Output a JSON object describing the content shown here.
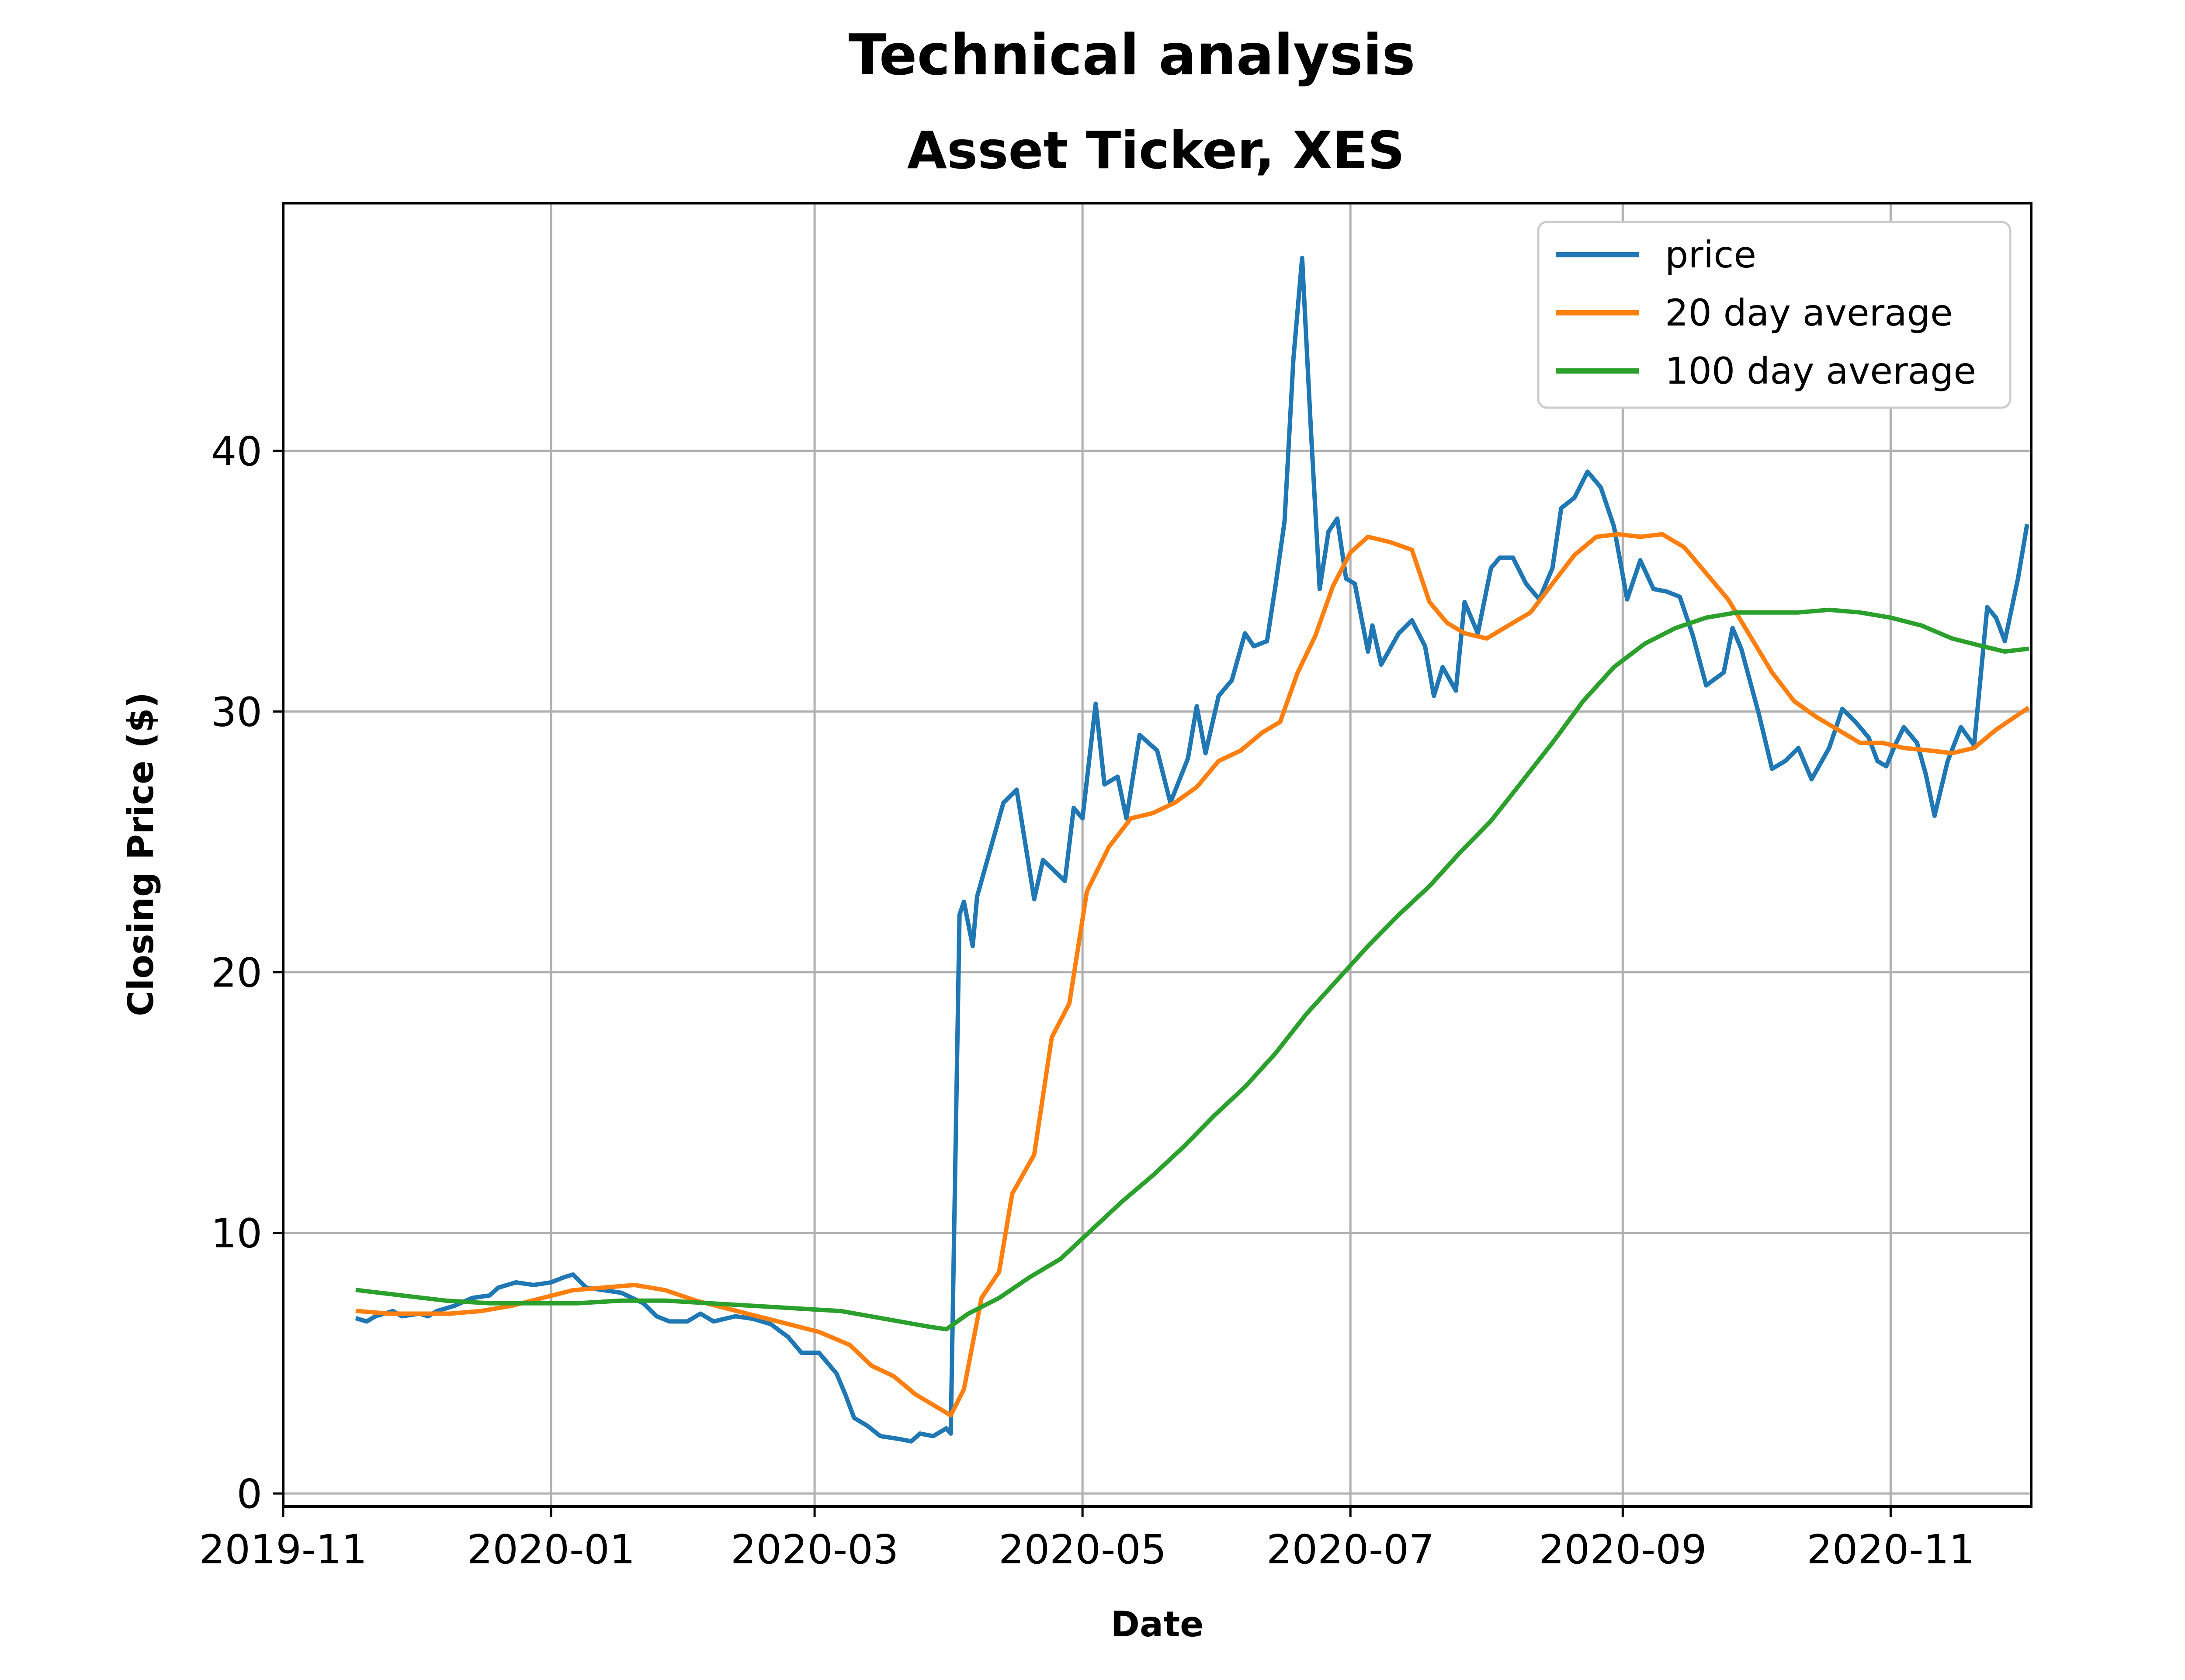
{
  "chart_data": {
    "type": "line",
    "title": "Technical analysis",
    "subtitle": "Asset Ticker, XES",
    "xlabel": "Date",
    "ylabel": "Closing Price ($)",
    "x_ticks": [
      "2019-11",
      "2020-01",
      "2020-03",
      "2020-05",
      "2020-07",
      "2020-09",
      "2020-11"
    ],
    "y_ticks": [
      0,
      10,
      20,
      30,
      40
    ],
    "xlim": [
      "2019-11-01",
      "2020-12-03"
    ],
    "ylim": [
      -0.5,
      49.5
    ],
    "grid": true,
    "legend_position": "top-right",
    "colors": {
      "price": "#1f77b4",
      "avg20": "#ff7f0e",
      "avg100": "#2ca02c"
    },
    "series": [
      {
        "name": "price",
        "color": "#1f77b4",
        "points": [
          [
            "2019-11-18",
            6.7
          ],
          [
            "2019-11-20",
            6.6
          ],
          [
            "2019-11-22",
            6.8
          ],
          [
            "2019-11-26",
            7.0
          ],
          [
            "2019-11-28",
            6.8
          ],
          [
            "2019-12-02",
            6.9
          ],
          [
            "2019-12-04",
            6.8
          ],
          [
            "2019-12-06",
            7.0
          ],
          [
            "2019-12-10",
            7.2
          ],
          [
            "2019-12-14",
            7.5
          ],
          [
            "2019-12-18",
            7.6
          ],
          [
            "2019-12-20",
            7.9
          ],
          [
            "2019-12-24",
            8.1
          ],
          [
            "2019-12-28",
            8.0
          ],
          [
            "2020-01-01",
            8.1
          ],
          [
            "2020-01-04",
            8.3
          ],
          [
            "2020-01-06",
            8.4
          ],
          [
            "2020-01-09",
            7.9
          ],
          [
            "2020-01-13",
            7.8
          ],
          [
            "2020-01-17",
            7.7
          ],
          [
            "2020-01-22",
            7.3
          ],
          [
            "2020-01-25",
            6.8
          ],
          [
            "2020-01-28",
            6.6
          ],
          [
            "2020-02-01",
            6.6
          ],
          [
            "2020-02-04",
            6.9
          ],
          [
            "2020-02-07",
            6.6
          ],
          [
            "2020-02-12",
            6.8
          ],
          [
            "2020-02-16",
            6.7
          ],
          [
            "2020-02-20",
            6.5
          ],
          [
            "2020-02-24",
            6.0
          ],
          [
            "2020-02-27",
            5.4
          ],
          [
            "2020-03-02",
            5.4
          ],
          [
            "2020-03-06",
            4.6
          ],
          [
            "2020-03-08",
            3.8
          ],
          [
            "2020-03-10",
            2.9
          ],
          [
            "2020-03-13",
            2.6
          ],
          [
            "2020-03-16",
            2.2
          ],
          [
            "2020-03-20",
            2.1
          ],
          [
            "2020-03-23",
            2.0
          ],
          [
            "2020-03-25",
            2.3
          ],
          [
            "2020-03-28",
            2.2
          ],
          [
            "2020-03-31",
            2.5
          ],
          [
            "2020-04-01",
            2.3
          ],
          [
            "2020-04-03",
            22.2
          ],
          [
            "2020-04-04",
            22.7
          ],
          [
            "2020-04-06",
            21.0
          ],
          [
            "2020-04-07",
            22.9
          ],
          [
            "2020-04-09",
            24.1
          ],
          [
            "2020-04-13",
            26.5
          ],
          [
            "2020-04-16",
            27.0
          ],
          [
            "2020-04-20",
            22.8
          ],
          [
            "2020-04-22",
            24.3
          ],
          [
            "2020-04-27",
            23.5
          ],
          [
            "2020-04-29",
            26.3
          ],
          [
            "2020-05-01",
            25.9
          ],
          [
            "2020-05-04",
            30.3
          ],
          [
            "2020-05-06",
            27.2
          ],
          [
            "2020-05-09",
            27.5
          ],
          [
            "2020-05-11",
            25.9
          ],
          [
            "2020-05-14",
            29.1
          ],
          [
            "2020-05-18",
            28.5
          ],
          [
            "2020-05-21",
            26.5
          ],
          [
            "2020-05-25",
            28.2
          ],
          [
            "2020-05-27",
            30.2
          ],
          [
            "2020-05-29",
            28.4
          ],
          [
            "2020-06-01",
            30.6
          ],
          [
            "2020-06-04",
            31.2
          ],
          [
            "2020-06-07",
            33.0
          ],
          [
            "2020-06-09",
            32.5
          ],
          [
            "2020-06-12",
            32.7
          ],
          [
            "2020-06-14",
            34.9
          ],
          [
            "2020-06-16",
            37.3
          ],
          [
            "2020-06-18",
            43.5
          ],
          [
            "2020-06-20",
            47.4
          ],
          [
            "2020-06-22",
            40.8
          ],
          [
            "2020-06-24",
            34.7
          ],
          [
            "2020-06-26",
            36.9
          ],
          [
            "2020-06-28",
            37.4
          ],
          [
            "2020-06-30",
            35.1
          ],
          [
            "2020-07-02",
            34.9
          ],
          [
            "2020-07-05",
            32.3
          ],
          [
            "2020-07-06",
            33.3
          ],
          [
            "2020-07-08",
            31.8
          ],
          [
            "2020-07-12",
            33.0
          ],
          [
            "2020-07-15",
            33.5
          ],
          [
            "2020-07-18",
            32.5
          ],
          [
            "2020-07-20",
            30.6
          ],
          [
            "2020-07-22",
            31.7
          ],
          [
            "2020-07-25",
            30.8
          ],
          [
            "2020-07-27",
            34.2
          ],
          [
            "2020-07-30",
            33.0
          ],
          [
            "2020-08-02",
            35.5
          ],
          [
            "2020-08-04",
            35.9
          ],
          [
            "2020-08-07",
            35.9
          ],
          [
            "2020-08-10",
            34.9
          ],
          [
            "2020-08-13",
            34.3
          ],
          [
            "2020-08-16",
            35.5
          ],
          [
            "2020-08-18",
            37.8
          ],
          [
            "2020-08-21",
            38.2
          ],
          [
            "2020-08-24",
            39.2
          ],
          [
            "2020-08-27",
            38.6
          ],
          [
            "2020-08-30",
            37.1
          ],
          [
            "2020-09-02",
            34.3
          ],
          [
            "2020-09-05",
            35.8
          ],
          [
            "2020-09-08",
            34.7
          ],
          [
            "2020-09-11",
            34.6
          ],
          [
            "2020-09-14",
            34.4
          ],
          [
            "2020-09-17",
            32.9
          ],
          [
            "2020-09-20",
            31.0
          ],
          [
            "2020-09-24",
            31.5
          ],
          [
            "2020-09-26",
            33.2
          ],
          [
            "2020-09-28",
            32.4
          ],
          [
            "2020-10-02",
            29.9
          ],
          [
            "2020-10-05",
            27.8
          ],
          [
            "2020-10-08",
            28.1
          ],
          [
            "2020-10-11",
            28.6
          ],
          [
            "2020-10-14",
            27.4
          ],
          [
            "2020-10-18",
            28.6
          ],
          [
            "2020-10-21",
            30.1
          ],
          [
            "2020-10-24",
            29.6
          ],
          [
            "2020-10-27",
            29.0
          ],
          [
            "2020-10-29",
            28.1
          ],
          [
            "2020-10-31",
            27.9
          ],
          [
            "2020-11-02",
            28.7
          ],
          [
            "2020-11-04",
            29.4
          ],
          [
            "2020-11-07",
            28.8
          ],
          [
            "2020-11-09",
            27.6
          ],
          [
            "2020-11-11",
            26.0
          ],
          [
            "2020-11-14",
            28.1
          ],
          [
            "2020-11-17",
            29.4
          ],
          [
            "2020-11-20",
            28.7
          ],
          [
            "2020-11-23",
            34.0
          ],
          [
            "2020-11-25",
            33.6
          ],
          [
            "2020-11-27",
            32.7
          ],
          [
            "2020-11-30",
            35.1
          ],
          [
            "2020-12-02",
            37.1
          ]
        ]
      },
      {
        "name": "20 day average",
        "color": "#ff7f0e",
        "points": [
          [
            "2019-11-18",
            7.0
          ],
          [
            "2019-11-25",
            6.9
          ],
          [
            "2019-12-02",
            6.9
          ],
          [
            "2019-12-09",
            6.9
          ],
          [
            "2019-12-16",
            7.0
          ],
          [
            "2019-12-23",
            7.2
          ],
          [
            "2019-12-30",
            7.5
          ],
          [
            "2020-01-06",
            7.8
          ],
          [
            "2020-01-13",
            7.9
          ],
          [
            "2020-01-20",
            8.0
          ],
          [
            "2020-01-27",
            7.8
          ],
          [
            "2020-02-03",
            7.4
          ],
          [
            "2020-02-10",
            7.1
          ],
          [
            "2020-02-17",
            6.8
          ],
          [
            "2020-02-24",
            6.5
          ],
          [
            "2020-03-02",
            6.2
          ],
          [
            "2020-03-09",
            5.7
          ],
          [
            "2020-03-14",
            4.9
          ],
          [
            "2020-03-19",
            4.5
          ],
          [
            "2020-03-24",
            3.8
          ],
          [
            "2020-03-29",
            3.3
          ],
          [
            "2020-04-01",
            3.0
          ],
          [
            "2020-04-04",
            4.0
          ],
          [
            "2020-04-08",
            7.5
          ],
          [
            "2020-04-12",
            8.5
          ],
          [
            "2020-04-15",
            11.5
          ],
          [
            "2020-04-20",
            13.0
          ],
          [
            "2020-04-24",
            17.5
          ],
          [
            "2020-04-28",
            18.8
          ],
          [
            "2020-05-02",
            23.1
          ],
          [
            "2020-05-07",
            24.8
          ],
          [
            "2020-05-12",
            25.9
          ],
          [
            "2020-05-17",
            26.1
          ],
          [
            "2020-05-22",
            26.5
          ],
          [
            "2020-05-27",
            27.1
          ],
          [
            "2020-06-01",
            28.1
          ],
          [
            "2020-06-06",
            28.5
          ],
          [
            "2020-06-11",
            29.2
          ],
          [
            "2020-06-15",
            29.6
          ],
          [
            "2020-06-19",
            31.5
          ],
          [
            "2020-06-23",
            32.9
          ],
          [
            "2020-06-27",
            34.8
          ],
          [
            "2020-07-01",
            36.1
          ],
          [
            "2020-07-05",
            36.7
          ],
          [
            "2020-07-10",
            36.5
          ],
          [
            "2020-07-15",
            36.2
          ],
          [
            "2020-07-19",
            34.2
          ],
          [
            "2020-07-23",
            33.4
          ],
          [
            "2020-07-27",
            33.0
          ],
          [
            "2020-08-01",
            32.8
          ],
          [
            "2020-08-06",
            33.3
          ],
          [
            "2020-08-11",
            33.8
          ],
          [
            "2020-08-16",
            34.9
          ],
          [
            "2020-08-21",
            36.0
          ],
          [
            "2020-08-26",
            36.7
          ],
          [
            "2020-08-31",
            36.8
          ],
          [
            "2020-09-05",
            36.7
          ],
          [
            "2020-09-10",
            36.8
          ],
          [
            "2020-09-15",
            36.3
          ],
          [
            "2020-09-20",
            35.3
          ],
          [
            "2020-09-25",
            34.3
          ],
          [
            "2020-09-30",
            32.9
          ],
          [
            "2020-10-05",
            31.5
          ],
          [
            "2020-10-10",
            30.4
          ],
          [
            "2020-10-15",
            29.8
          ],
          [
            "2020-10-20",
            29.3
          ],
          [
            "2020-10-25",
            28.8
          ],
          [
            "2020-10-30",
            28.8
          ],
          [
            "2020-11-04",
            28.6
          ],
          [
            "2020-11-10",
            28.5
          ],
          [
            "2020-11-15",
            28.4
          ],
          [
            "2020-11-20",
            28.6
          ],
          [
            "2020-11-25",
            29.3
          ],
          [
            "2020-12-02",
            30.1
          ]
        ]
      },
      {
        "name": "100 day average",
        "color": "#2ca02c",
        "points": [
          [
            "2019-11-18",
            7.8
          ],
          [
            "2019-11-28",
            7.6
          ],
          [
            "2019-12-08",
            7.4
          ],
          [
            "2019-12-18",
            7.3
          ],
          [
            "2019-12-28",
            7.3
          ],
          [
            "2020-01-07",
            7.3
          ],
          [
            "2020-01-17",
            7.4
          ],
          [
            "2020-01-27",
            7.4
          ],
          [
            "2020-02-06",
            7.3
          ],
          [
            "2020-02-16",
            7.2
          ],
          [
            "2020-02-26",
            7.1
          ],
          [
            "2020-03-07",
            7.0
          ],
          [
            "2020-03-17",
            6.7
          ],
          [
            "2020-03-27",
            6.4
          ],
          [
            "2020-03-31",
            6.3
          ],
          [
            "2020-04-05",
            6.9
          ],
          [
            "2020-04-12",
            7.5
          ],
          [
            "2020-04-19",
            8.3
          ],
          [
            "2020-04-26",
            9.0
          ],
          [
            "2020-05-03",
            10.1
          ],
          [
            "2020-05-10",
            11.2
          ],
          [
            "2020-05-17",
            12.2
          ],
          [
            "2020-05-24",
            13.3
          ],
          [
            "2020-05-31",
            14.5
          ],
          [
            "2020-06-07",
            15.6
          ],
          [
            "2020-06-14",
            16.9
          ],
          [
            "2020-06-21",
            18.4
          ],
          [
            "2020-06-28",
            19.7
          ],
          [
            "2020-07-05",
            21.0
          ],
          [
            "2020-07-12",
            22.2
          ],
          [
            "2020-07-19",
            23.3
          ],
          [
            "2020-07-26",
            24.6
          ],
          [
            "2020-08-02",
            25.8
          ],
          [
            "2020-08-09",
            27.3
          ],
          [
            "2020-08-16",
            28.8
          ],
          [
            "2020-08-23",
            30.4
          ],
          [
            "2020-08-30",
            31.7
          ],
          [
            "2020-09-06",
            32.6
          ],
          [
            "2020-09-13",
            33.2
          ],
          [
            "2020-09-20",
            33.6
          ],
          [
            "2020-09-27",
            33.8
          ],
          [
            "2020-10-04",
            33.8
          ],
          [
            "2020-10-11",
            33.8
          ],
          [
            "2020-10-18",
            33.9
          ],
          [
            "2020-10-25",
            33.8
          ],
          [
            "2020-11-01",
            33.6
          ],
          [
            "2020-11-08",
            33.3
          ],
          [
            "2020-11-15",
            32.8
          ],
          [
            "2020-11-22",
            32.5
          ],
          [
            "2020-11-27",
            32.3
          ],
          [
            "2020-12-02",
            32.4
          ]
        ]
      }
    ]
  }
}
